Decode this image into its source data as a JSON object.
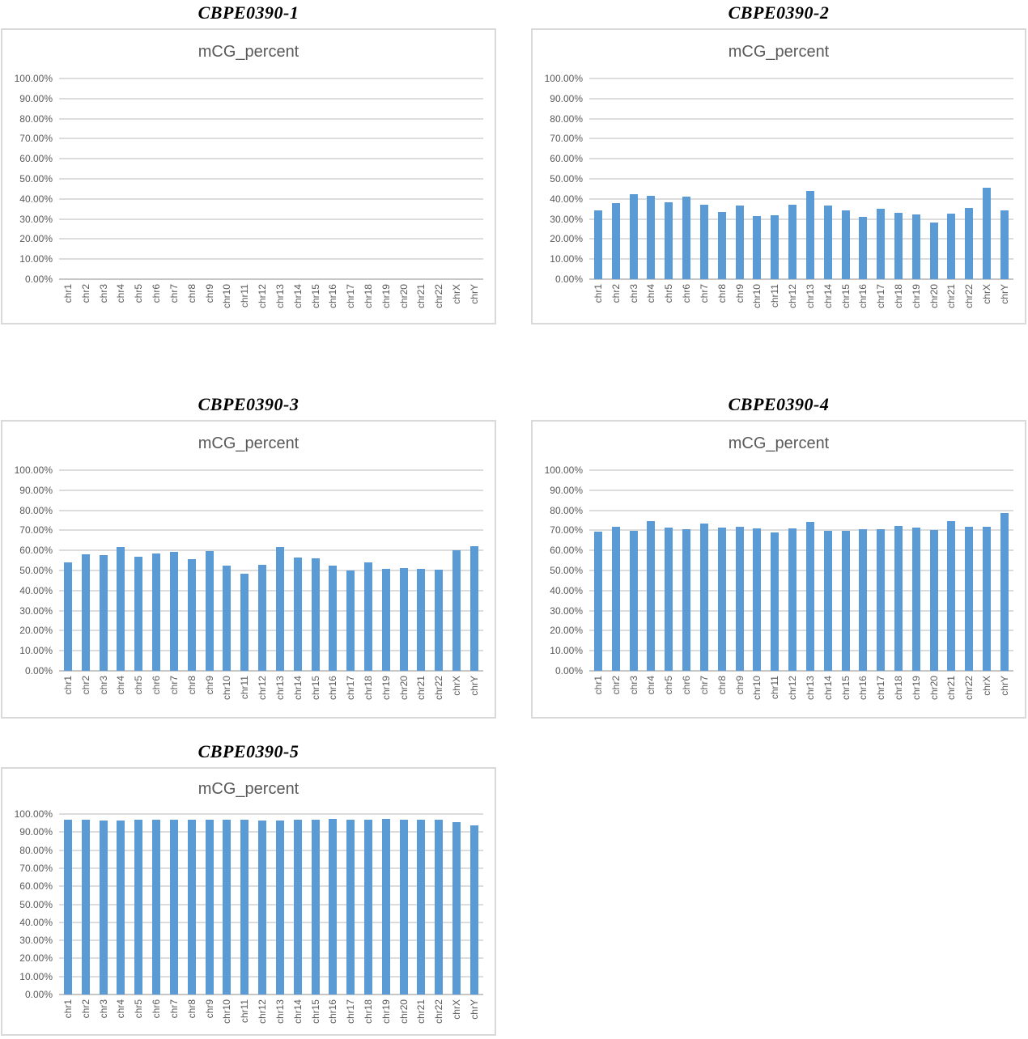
{
  "colors": {
    "bar": "#5B9BD5",
    "gridline": "#DCDCDC",
    "axis_line": "#C6C6C6",
    "tick_label": "#595959",
    "inner_title": "#595959",
    "panel_title": "#000000",
    "box_border": "#D9D9D9"
  },
  "chart_data": [
    {
      "type": "bar",
      "title": "CBPE0390-1",
      "inner_title": "mCG_percent",
      "xlabel": "",
      "ylabel": "",
      "ylim": [
        0,
        100
      ],
      "grid": true,
      "legend": false,
      "y_ticks": [
        "100.00%",
        "90.00%",
        "80.00%",
        "70.00%",
        "60.00%",
        "50.00%",
        "40.00%",
        "30.00%",
        "20.00%",
        "10.00%",
        "0.00%"
      ],
      "categories": [
        "chr1",
        "chr2",
        "chr3",
        "chr4",
        "chr5",
        "chr6",
        "chr7",
        "chr8",
        "chr9",
        "chr10",
        "chr11",
        "chr12",
        "chr13",
        "chr14",
        "chr15",
        "chr16",
        "chr17",
        "chr18",
        "chr19",
        "chr20",
        "chr21",
        "chr22",
        "chrX",
        "chrY"
      ],
      "values": [
        null,
        null,
        null,
        null,
        null,
        null,
        null,
        null,
        null,
        null,
        null,
        null,
        null,
        null,
        null,
        null,
        null,
        null,
        null,
        null,
        null,
        null,
        null,
        null
      ]
    },
    {
      "type": "bar",
      "title": "CBPE0390-2",
      "inner_title": "mCG_percent",
      "xlabel": "",
      "ylabel": "",
      "ylim": [
        0,
        100
      ],
      "grid": true,
      "legend": false,
      "y_ticks": [
        "100.00%",
        "90.00%",
        "80.00%",
        "70.00%",
        "60.00%",
        "50.00%",
        "40.00%",
        "30.00%",
        "20.00%",
        "10.00%",
        "0.00%"
      ],
      "categories": [
        "chr1",
        "chr2",
        "chr3",
        "chr4",
        "chr5",
        "chr6",
        "chr7",
        "chr8",
        "chr9",
        "chr10",
        "chr11",
        "chr12",
        "chr13",
        "chr14",
        "chr15",
        "chr16",
        "chr17",
        "chr18",
        "chr19",
        "chr20",
        "chr21",
        "chr22",
        "chrX",
        "chrY"
      ],
      "values": [
        34.4,
        38.1,
        42.2,
        41.4,
        38.4,
        41.0,
        37.2,
        33.3,
        36.9,
        31.3,
        31.7,
        37.2,
        43.8,
        36.7,
        34.1,
        31.0,
        35.2,
        32.9,
        32.1,
        28.4,
        32.8,
        35.6,
        45.4,
        34.4
      ]
    },
    {
      "type": "bar",
      "title": "CBPE0390-3",
      "inner_title": "mCG_percent",
      "xlabel": "",
      "ylabel": "",
      "ylim": [
        0,
        100
      ],
      "grid": true,
      "legend": false,
      "y_ticks": [
        "100.00%",
        "90.00%",
        "80.00%",
        "70.00%",
        "60.00%",
        "50.00%",
        "40.00%",
        "30.00%",
        "20.00%",
        "10.00%",
        "0.00%"
      ],
      "categories": [
        "chr1",
        "chr2",
        "chr3",
        "chr4",
        "chr5",
        "chr6",
        "chr7",
        "chr8",
        "chr9",
        "chr10",
        "chr11",
        "chr12",
        "chr13",
        "chr14",
        "chr15",
        "chr16",
        "chr17",
        "chr18",
        "chr19",
        "chr20",
        "chr21",
        "chr22",
        "chrX",
        "chrY"
      ],
      "values": [
        54.0,
        58.0,
        57.6,
        61.8,
        56.8,
        58.5,
        59.3,
        55.5,
        59.8,
        52.4,
        48.5,
        52.7,
        61.7,
        56.6,
        56.0,
        52.4,
        50.0,
        54.0,
        50.7,
        51.2,
        50.7,
        50.4,
        60.1,
        62.0
      ]
    },
    {
      "type": "bar",
      "title": "CBPE0390-4",
      "inner_title": "mCG_percent",
      "xlabel": "",
      "ylabel": "",
      "ylim": [
        0,
        100
      ],
      "grid": true,
      "legend": false,
      "y_ticks": [
        "100.00%",
        "90.00%",
        "80.00%",
        "70.00%",
        "60.00%",
        "50.00%",
        "40.00%",
        "30.00%",
        "20.00%",
        "10.00%",
        "0.00%"
      ],
      "categories": [
        "chr1",
        "chr2",
        "chr3",
        "chr4",
        "chr5",
        "chr6",
        "chr7",
        "chr8",
        "chr9",
        "chr10",
        "chr11",
        "chr12",
        "chr13",
        "chr14",
        "chr15",
        "chr16",
        "chr17",
        "chr18",
        "chr19",
        "chr20",
        "chr21",
        "chr22",
        "chrX",
        "chrY"
      ],
      "values": [
        69.5,
        71.7,
        69.8,
        74.5,
        71.3,
        70.5,
        73.3,
        71.3,
        71.8,
        71.1,
        68.9,
        70.9,
        74.1,
        69.7,
        69.9,
        70.6,
        70.6,
        72.0,
        71.3,
        70.2,
        74.5,
        71.9,
        71.7,
        78.8
      ]
    },
    {
      "type": "bar",
      "title": "CBPE0390-5",
      "inner_title": "mCG_percent",
      "xlabel": "",
      "ylabel": "",
      "ylim": [
        0,
        100
      ],
      "grid": true,
      "legend": false,
      "y_ticks": [
        "100.00%",
        "90.00%",
        "80.00%",
        "70.00%",
        "60.00%",
        "50.00%",
        "40.00%",
        "30.00%",
        "20.00%",
        "10.00%",
        "0.00%"
      ],
      "categories": [
        "chr1",
        "chr2",
        "chr3",
        "chr4",
        "chr5",
        "chr6",
        "chr7",
        "chr8",
        "chr9",
        "chr10",
        "chr11",
        "chr12",
        "chr13",
        "chr14",
        "chr15",
        "chr16",
        "chr17",
        "chr18",
        "chr19",
        "chr20",
        "chr21",
        "chr22",
        "chrX",
        "chrY"
      ],
      "values": [
        96.7,
        96.8,
        96.6,
        96.6,
        96.7,
        96.7,
        96.9,
        96.9,
        96.7,
        96.9,
        96.9,
        96.6,
        96.6,
        96.9,
        96.9,
        97.1,
        96.9,
        96.7,
        97.2,
        96.9,
        96.9,
        97.0,
        95.5,
        93.7
      ]
    }
  ]
}
